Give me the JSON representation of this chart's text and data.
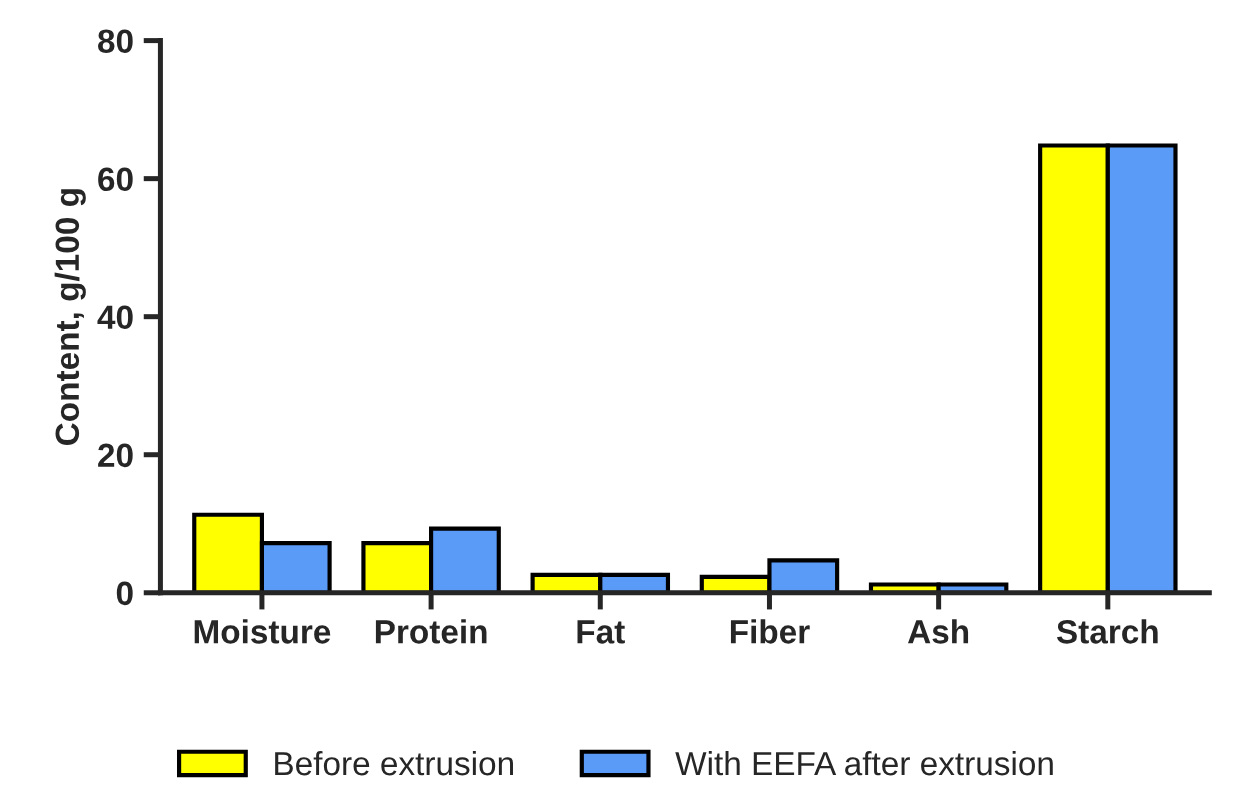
{
  "chart_data": {
    "type": "bar",
    "ylabel": "Content, g/100 g",
    "categories": [
      "Moisture",
      "Protein",
      "Fat",
      "Fiber",
      "Ash",
      "Starch"
    ],
    "series": [
      {
        "name": "Before extrusion",
        "color": "#ffff00",
        "values": [
          11.3,
          7.2,
          2.6,
          2.3,
          1.2,
          64.8
        ]
      },
      {
        "name": "With EEFA after extrusion",
        "color": "#5b9bf8",
        "values": [
          7.2,
          9.3,
          2.6,
          4.7,
          1.2,
          64.8
        ]
      }
    ],
    "ylim": [
      0,
      80
    ],
    "yticks": [
      0,
      20,
      40,
      60,
      80
    ],
    "grid": false,
    "legend": "bottom"
  }
}
